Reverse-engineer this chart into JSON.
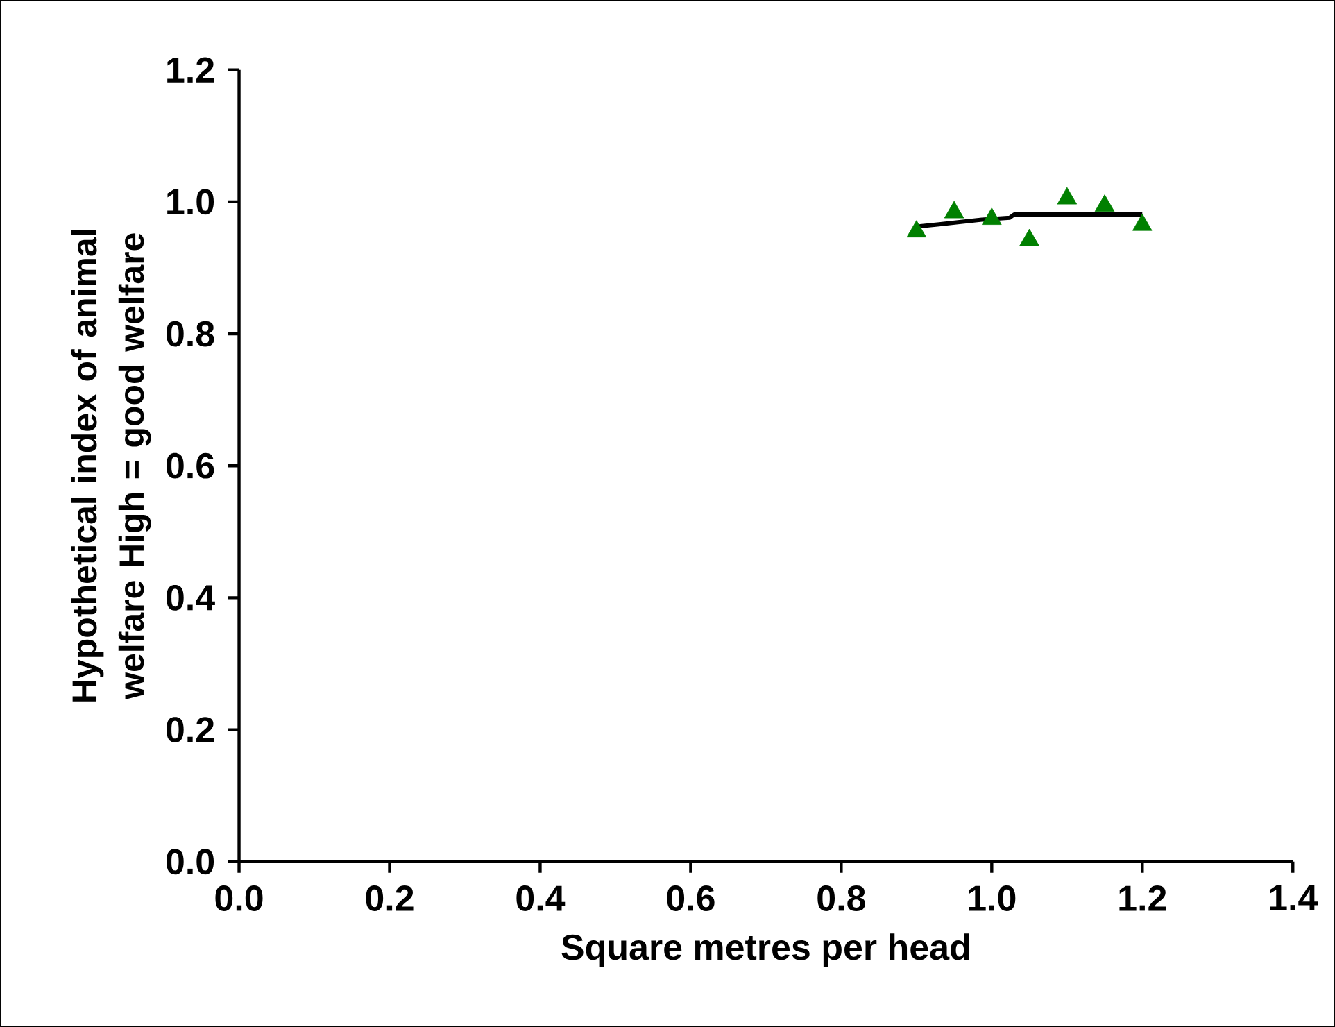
{
  "chart_data": {
    "type": "scatter",
    "xlabel": "Square metres per head",
    "ylabel": "Hypothetical index of animal welfare High = good welfare",
    "xlim": [
      0,
      1.4
    ],
    "ylim": [
      0,
      1.2
    ],
    "xticks": [
      {
        "value": 0,
        "label": "0.0"
      },
      {
        "value": 0.2,
        "label": "0.2"
      },
      {
        "value": 0.4,
        "label": "0.4"
      },
      {
        "value": 0.6,
        "label": "0.6"
      },
      {
        "value": 0.8,
        "label": "0.8"
      },
      {
        "value": 1.0,
        "label": "1.0"
      },
      {
        "value": 1.2,
        "label": "1.2"
      },
      {
        "value": 1.4,
        "label": "1.4"
      }
    ],
    "yticks": [
      {
        "value": 0,
        "label": "0.0"
      },
      {
        "value": 0.2,
        "label": "0.2"
      },
      {
        "value": 0.4,
        "label": "0.4"
      },
      {
        "value": 0.6,
        "label": "0.6"
      },
      {
        "value": 0.8,
        "label": "0.8"
      },
      {
        "value": 1.0,
        "label": "1.0"
      },
      {
        "value": 1.2,
        "label": "1.2"
      }
    ],
    "grid": false,
    "series": [
      {
        "marker": "triangle",
        "color": "#008000",
        "x": [
          0.9,
          0.95,
          1.0,
          1.05,
          1.1,
          1.15,
          1.2
        ],
        "values": [
          0.955,
          0.984,
          0.974,
          0.942,
          1.005,
          0.994,
          0.965
        ]
      },
      {
        "type": "line",
        "marker": "none",
        "line_style": "solid",
        "color": "#000000",
        "x": [
          0.9,
          0.905,
          0.93,
          0.955,
          0.987,
          1.024,
          1.03,
          1.2
        ],
        "values": [
          0.961,
          0.963,
          0.966,
          0.969,
          0.973,
          0.976,
          0.981,
          0.981
        ]
      }
    ]
  }
}
